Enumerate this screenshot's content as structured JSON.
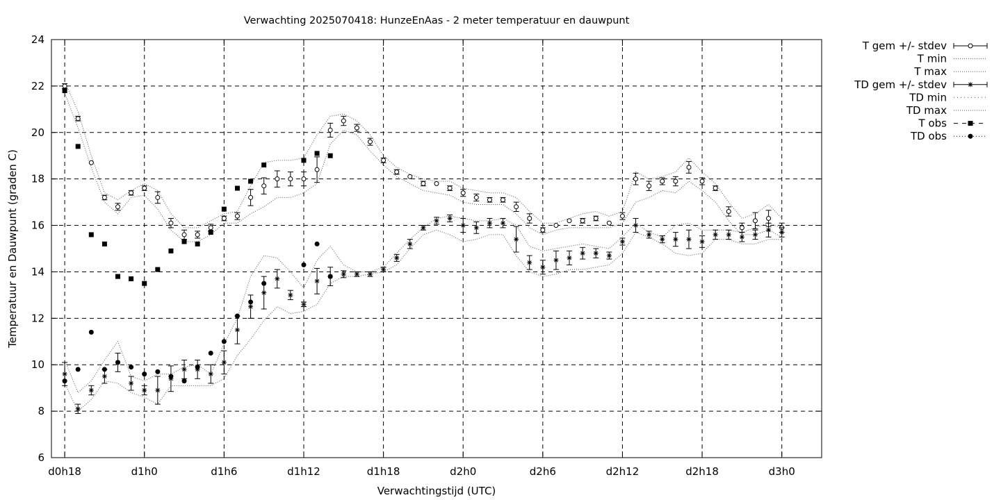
{
  "chart_data": {
    "type": "line",
    "title": "Verwachting 2025070418: HunzeEnAas - 2 meter temperatuur en dauwpunt",
    "xlabel": "Verwachtingstijd (UTC)",
    "ylabel": "Temperatuur en Dauwpunt (graden C)",
    "ylim": [
      6,
      24
    ],
    "yticks": [
      6,
      8,
      10,
      12,
      14,
      16,
      18,
      20,
      22,
      24
    ],
    "x_range_hours": [
      -1,
      57
    ],
    "x_ticks": [
      {
        "hour": 0,
        "label": "d0h18"
      },
      {
        "hour": 6,
        "label": "d1h0"
      },
      {
        "hour": 12,
        "label": "d1h6"
      },
      {
        "hour": 18,
        "label": "d1h12"
      },
      {
        "hour": 24,
        "label": "d1h18"
      },
      {
        "hour": 30,
        "label": "d2h0"
      },
      {
        "hour": 36,
        "label": "d2h6"
      },
      {
        "hour": 42,
        "label": "d2h12"
      },
      {
        "hour": 48,
        "label": "d2h18"
      },
      {
        "hour": 54,
        "label": "d3h0"
      }
    ],
    "grid": true,
    "legend_position": "outside-right-top",
    "legend": [
      "T gem +/- stdev",
      "T min",
      "T max",
      "TD gem +/- stdev",
      "TD min",
      "TD max",
      "T obs",
      "TD obs"
    ],
    "series": {
      "t_mean": [
        22.0,
        20.6,
        18.7,
        17.2,
        16.8,
        17.4,
        17.6,
        17.2,
        16.1,
        15.6,
        15.6,
        15.9,
        16.3,
        16.4,
        17.2,
        17.7,
        18.0,
        18.0,
        18.0,
        18.4,
        20.1,
        20.5,
        20.2,
        19.6,
        18.8,
        18.3,
        18.1,
        17.8,
        17.8,
        17.6,
        17.4,
        17.2,
        17.1,
        17.1,
        16.8,
        16.3,
        15.8,
        16.0,
        16.2,
        16.2,
        16.3,
        16.1,
        16.4,
        18.0,
        17.7,
        17.9,
        17.9,
        18.5,
        17.9,
        17.6,
        16.6,
        15.9,
        16.2,
        16.3,
        15.9
      ],
      "t_std": [
        0.1,
        0.1,
        0.05,
        0.1,
        0.15,
        0.1,
        0.1,
        0.25,
        0.2,
        0.2,
        0.15,
        0.15,
        0.1,
        0.15,
        0.35,
        0.35,
        0.35,
        0.3,
        0.3,
        0.55,
        0.3,
        0.2,
        0.15,
        0.15,
        0.1,
        0.1,
        0.05,
        0.1,
        0.05,
        0.1,
        0.15,
        0.15,
        0.1,
        0.1,
        0.2,
        0.2,
        0.1,
        0.05,
        0.05,
        0.1,
        0.1,
        0.05,
        0.15,
        0.25,
        0.2,
        0.15,
        0.2,
        0.25,
        0.15,
        0.1,
        0.2,
        0.2,
        0.35,
        0.35,
        0.2
      ],
      "t_min": [
        21.7,
        20.2,
        18.5,
        17.0,
        16.5,
        17.2,
        17.3,
        16.7,
        15.8,
        15.3,
        15.3,
        15.6,
        16.1,
        16.1,
        16.5,
        16.8,
        17.2,
        17.2,
        17.4,
        17.8,
        19.5,
        20.1,
        19.9,
        19.2,
        18.6,
        18.1,
        17.8,
        17.5,
        17.4,
        17.3,
        17.0,
        16.9,
        16.9,
        16.9,
        16.5,
        15.9,
        15.6,
        15.8,
        15.9,
        15.9,
        15.9,
        15.9,
        16.1,
        17.0,
        17.2,
        17.5,
        17.4,
        17.9,
        17.5,
        17.0,
        16.2,
        15.6,
        15.6,
        15.8,
        15.5
      ],
      "t_max": [
        22.2,
        20.9,
        19.0,
        17.4,
        17.1,
        17.5,
        17.8,
        17.5,
        16.5,
        15.9,
        15.9,
        16.2,
        16.5,
        16.6,
        17.7,
        18.7,
        18.8,
        18.8,
        18.9,
        19.9,
        20.7,
        20.8,
        20.5,
        19.9,
        19.0,
        18.5,
        18.2,
        18.0,
        17.9,
        17.9,
        17.6,
        17.5,
        17.4,
        17.4,
        17.2,
        16.6,
        16.1,
        16.1,
        16.3,
        16.5,
        16.6,
        16.4,
        16.6,
        18.3,
        18.0,
        18.1,
        18.3,
        18.9,
        18.3,
        17.8,
        17.0,
        16.3,
        16.5,
        16.9,
        16.3
      ],
      "td_mean": [
        9.6,
        8.1,
        8.9,
        9.5,
        10.1,
        9.2,
        8.9,
        8.9,
        9.4,
        9.8,
        9.8,
        9.6,
        10.1,
        11.5,
        12.5,
        13.1,
        13.7,
        13.0,
        12.6,
        13.6,
        13.8,
        13.9,
        13.9,
        13.9,
        14.1,
        14.6,
        15.2,
        15.9,
        16.2,
        16.3,
        16.0,
        15.9,
        16.1,
        16.1,
        15.4,
        14.4,
        14.2,
        14.5,
        14.6,
        14.8,
        14.8,
        14.7,
        15.3,
        16.0,
        15.6,
        15.4,
        15.4,
        15.4,
        15.3,
        15.6,
        15.6,
        15.5,
        15.6,
        15.8,
        15.7
      ],
      "td_std": [
        0.5,
        0.2,
        0.2,
        0.3,
        0.4,
        0.3,
        0.2,
        0.6,
        0.55,
        0.4,
        0.4,
        0.4,
        0.5,
        0.6,
        0.5,
        0.7,
        0.4,
        0.2,
        0.1,
        0.55,
        0.4,
        0.15,
        0.1,
        0.1,
        0.1,
        0.15,
        0.2,
        0.1,
        0.15,
        0.15,
        0.3,
        0.25,
        0.2,
        0.2,
        0.55,
        0.3,
        0.3,
        0.4,
        0.3,
        0.25,
        0.2,
        0.15,
        0.15,
        0.3,
        0.15,
        0.15,
        0.3,
        0.4,
        0.25,
        0.2,
        0.2,
        0.2,
        0.2,
        0.3,
        0.2
      ],
      "td_min": [
        9.2,
        8.0,
        8.5,
        9.3,
        9.2,
        8.8,
        8.6,
        8.3,
        9.1,
        9.1,
        9.1,
        9.1,
        9.4,
        10.4,
        11.1,
        11.9,
        12.5,
        12.2,
        12.3,
        12.6,
        13.5,
        13.8,
        13.8,
        13.9,
        14.0,
        14.3,
        15.0,
        15.6,
        15.8,
        15.6,
        15.3,
        15.4,
        15.6,
        15.6,
        14.7,
        14.0,
        13.8,
        13.9,
        14.1,
        14.1,
        14.2,
        14.3,
        14.8,
        15.7,
        15.5,
        15.2,
        14.8,
        14.7,
        14.8,
        15.4,
        15.4,
        15.2,
        15.2,
        15.4,
        15.4
      ],
      "td_max": [
        10.2,
        8.8,
        9.3,
        10.2,
        11.0,
        9.5,
        9.3,
        9.6,
        9.6,
        9.9,
        10.0,
        9.6,
        10.9,
        12.0,
        13.8,
        14.7,
        14.6,
        14.0,
        13.3,
        14.5,
        15.1,
        14.3,
        14.0,
        14.0,
        14.2,
        14.8,
        15.4,
        15.9,
        16.3,
        16.4,
        16.3,
        16.2,
        16.2,
        16.3,
        16.0,
        15.1,
        14.9,
        15.0,
        15.1,
        15.2,
        15.1,
        15.0,
        15.5,
        16.1,
        15.7,
        15.5,
        16.0,
        16.1,
        15.8,
        15.8,
        15.8,
        15.7,
        15.9,
        16.1,
        15.9
      ],
      "t_obs": [
        21.8,
        19.4,
        15.6,
        15.2,
        13.8,
        13.7,
        13.5,
        14.1,
        14.9,
        15.3,
        15.2,
        15.7,
        16.7,
        17.6,
        17.9,
        18.6,
        null,
        null,
        18.8,
        19.1,
        19.0
      ],
      "td_obs": [
        9.3,
        9.8,
        11.4,
        9.8,
        10.1,
        9.9,
        9.6,
        9.7,
        9.5,
        9.3,
        9.9,
        10.5,
        11.0,
        12.1,
        12.7,
        13.5,
        null,
        null,
        14.3,
        15.2,
        13.8
      ]
    }
  }
}
